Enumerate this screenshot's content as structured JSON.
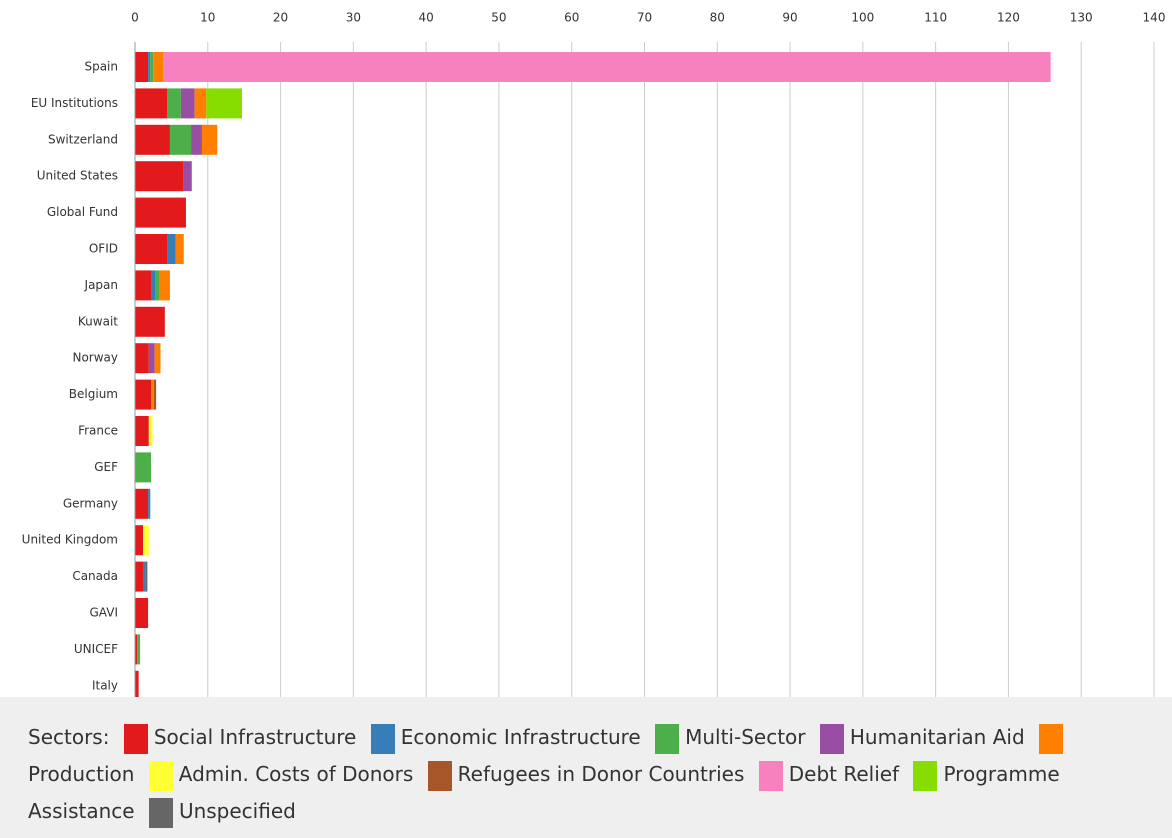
{
  "chart_data": {
    "type": "stacked_bar_horizontal",
    "categories": [
      "Spain",
      "EU Institutions",
      "Switzerland",
      "United States",
      "Global Fund",
      "OFID",
      "Japan",
      "Kuwait",
      "Norway",
      "Belgium",
      "France",
      "GEF",
      "Germany",
      "United Kingdom",
      "Canada",
      "GAVI",
      "UNICEF",
      "Italy"
    ],
    "series": [
      {
        "name": "Social Infrastructure",
        "color": "#e31a1c",
        "values": [
          1.8,
          4.4,
          4.8,
          6.6,
          7.0,
          4.4,
          2.3,
          4.1,
          1.9,
          2.2,
          1.9,
          0,
          1.8,
          1.1,
          1.1,
          1.8,
          0.3,
          0.5
        ]
      },
      {
        "name": "Economic Infrastructure",
        "color": "#377eb8",
        "values": [
          0.3,
          0,
          0,
          0,
          0,
          1.2,
          0.5,
          0,
          0,
          0,
          0,
          0,
          0.3,
          0,
          0.3,
          0,
          0,
          0
        ]
      },
      {
        "name": "Multi-Sector",
        "color": "#4daf4a",
        "values": [
          0.4,
          1.9,
          2.9,
          0,
          0,
          0,
          0.5,
          0,
          0,
          0,
          0,
          2.2,
          0,
          0,
          0,
          0,
          0.4,
          0
        ]
      },
      {
        "name": "Humanitarian Aid",
        "color": "#984ea3",
        "values": [
          0,
          1.9,
          1.5,
          1.2,
          0,
          0,
          0,
          0,
          0.8,
          0,
          0,
          0,
          0,
          0,
          0,
          0,
          0,
          0
        ]
      },
      {
        "name": "Production",
        "color": "#ff7f00",
        "values": [
          1.4,
          1.6,
          2.1,
          0,
          0,
          1.1,
          1.5,
          0,
          0.8,
          0.4,
          0,
          0,
          0,
          0,
          0,
          0,
          0,
          0
        ]
      },
      {
        "name": "Admin. Costs of Donors",
        "color": "#ffff33",
        "values": [
          0,
          0,
          0,
          0,
          0,
          0,
          0,
          0,
          0,
          0,
          0.5,
          0,
          0,
          0.8,
          0,
          0,
          0,
          0
        ]
      },
      {
        "name": "Refugees in Donor Countries",
        "color": "#a65628",
        "values": [
          0,
          0,
          0,
          0,
          0,
          0,
          0,
          0,
          0,
          0.3,
          0,
          0,
          0,
          0,
          0,
          0,
          0,
          0
        ]
      },
      {
        "name": "Debt Relief",
        "color": "#f781bf",
        "values": [
          121.9,
          0,
          0,
          0,
          0,
          0,
          0,
          0,
          0,
          0,
          0,
          0,
          0,
          0,
          0,
          0,
          0,
          0
        ]
      },
      {
        "name": "Programme Assistance",
        "color": "#88dd00",
        "values": [
          0,
          4.9,
          0,
          0,
          0,
          0,
          0,
          0,
          0,
          0,
          0,
          0,
          0,
          0,
          0,
          0,
          0,
          0
        ]
      },
      {
        "name": "Unspecified",
        "color": "#666666",
        "values": [
          0,
          0,
          0,
          0,
          0,
          0,
          0,
          0,
          0,
          0,
          0,
          0,
          0,
          0,
          0.3,
          0,
          0,
          0
        ]
      }
    ],
    "legend_title": "Sectors:",
    "xlim": [
      0,
      140
    ],
    "xticks": [
      0,
      10,
      20,
      30,
      40,
      50,
      60,
      70,
      80,
      90,
      100,
      110,
      120,
      130,
      140
    ],
    "grid": true
  }
}
